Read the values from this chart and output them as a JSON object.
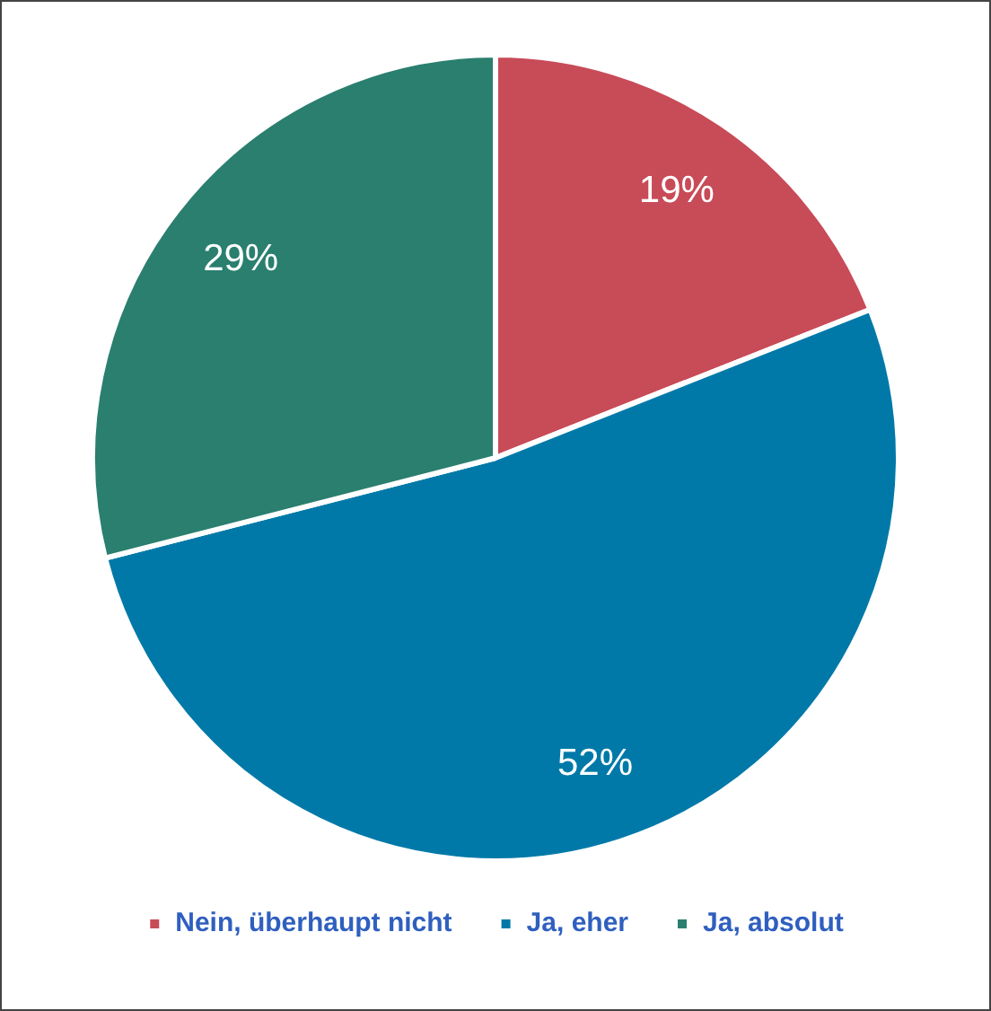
{
  "chart_data": {
    "type": "pie",
    "categories": [
      "Nein, überhaupt nicht",
      "Ja, eher",
      "Ja, absolut"
    ],
    "values": [
      19,
      52,
      29
    ],
    "colors": [
      "#c84b58",
      "#0079a8",
      "#2a7f6f"
    ],
    "value_labels": [
      "19%",
      "52%",
      "29%"
    ],
    "legend": "bottom"
  }
}
